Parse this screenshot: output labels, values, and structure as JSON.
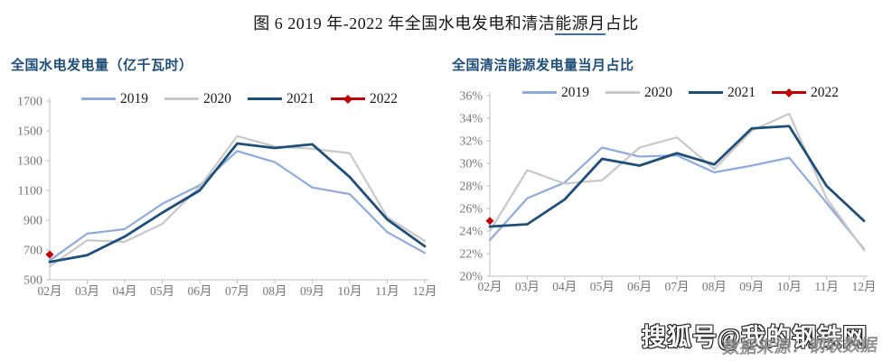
{
  "page": {
    "title_prefix": "图 6 2019 年-2022 年全国水电发电和清洁",
    "title_underlined": "能源月",
    "title_suffix": "占比"
  },
  "colors": {
    "series_2019": "#8faadc",
    "series_2020": "#c8c8c8",
    "series_2021": "#1f4e79",
    "series_2022": "#c00000",
    "chart_title": "#1f4e79",
    "axis": "#bfbfbf",
    "axis_label": "#767676",
    "title_underline": "#3a6cc8"
  },
  "chart_data": [
    {
      "type": "line",
      "title": "全国水电发电量（亿千瓦时）",
      "xlabel": "",
      "ylabel": "",
      "grid": false,
      "legend_position": "top",
      "categories": [
        "02月",
        "03月",
        "04月",
        "05月",
        "06月",
        "07月",
        "08月",
        "09月",
        "10月",
        "11月",
        "12月"
      ],
      "ylim": [
        500,
        1700
      ],
      "y_ticks": [
        1700,
        1500,
        1300,
        1100,
        900,
        700,
        500
      ],
      "y_tick_labels": [
        "1700",
        "1500",
        "1300",
        "1100",
        "900",
        "700",
        "500"
      ],
      "series": [
        {
          "name": "2019",
          "color": "#8faadc",
          "width": 2.2,
          "values": [
            630,
            810,
            840,
            1010,
            1135,
            1365,
            1290,
            1120,
            1075,
            820,
            680
          ]
        },
        {
          "name": "2020",
          "color": "#c8c8c8",
          "width": 2.2,
          "values": [
            590,
            765,
            755,
            875,
            1125,
            1465,
            1395,
            1380,
            1350,
            920,
            760
          ]
        },
        {
          "name": "2021",
          "color": "#1f4e79",
          "width": 2.8,
          "values": [
            620,
            665,
            790,
            950,
            1100,
            1415,
            1385,
            1410,
            1190,
            905,
            725
          ]
        },
        {
          "name": "2022",
          "color": "#c00000",
          "width": 2.2,
          "marker": "diamond",
          "values": [
            670,
            null,
            null,
            null,
            null,
            null,
            null,
            null,
            null,
            null,
            null
          ]
        }
      ]
    },
    {
      "type": "line",
      "title": "全国清洁能源发电量当月占比",
      "xlabel": "",
      "ylabel": "",
      "grid": false,
      "legend_position": "top",
      "categories": [
        "02月",
        "03月",
        "04月",
        "05月",
        "06月",
        "07月",
        "08月",
        "09月",
        "10月",
        "11月",
        "12月"
      ],
      "ylim": [
        20,
        36
      ],
      "y_ticks": [
        36,
        34,
        32,
        30,
        28,
        26,
        24,
        22,
        20
      ],
      "y_tick_labels": [
        "36%",
        "34%",
        "32%",
        "30%",
        "28%",
        "26%",
        "24%",
        "22%",
        "20%"
      ],
      "series": [
        {
          "name": "2019",
          "color": "#8faadc",
          "width": 2.2,
          "values": [
            23.2,
            26.9,
            28.3,
            31.4,
            30.6,
            30.7,
            29.2,
            29.8,
            30.5,
            26.5,
            22.4
          ]
        },
        {
          "name": "2020",
          "color": "#c8c8c8",
          "width": 2.2,
          "values": [
            24.0,
            29.4,
            28.2,
            28.5,
            31.4,
            32.3,
            29.5,
            32.9,
            34.4,
            26.9,
            22.3
          ]
        },
        {
          "name": "2021",
          "color": "#1f4e79",
          "width": 2.8,
          "values": [
            24.4,
            24.6,
            26.8,
            30.4,
            29.8,
            30.9,
            29.9,
            33.1,
            33.3,
            28.0,
            24.9
          ]
        },
        {
          "name": "2022",
          "color": "#c00000",
          "width": 2.2,
          "marker": "diamond",
          "values": [
            24.9,
            null,
            null,
            null,
            null,
            null,
            null,
            null,
            null,
            null,
            null
          ]
        }
      ]
    }
  ],
  "watermarks": {
    "sohu": "搜狐号@我的钢铁网",
    "source": "数据来源：钢联数据"
  }
}
